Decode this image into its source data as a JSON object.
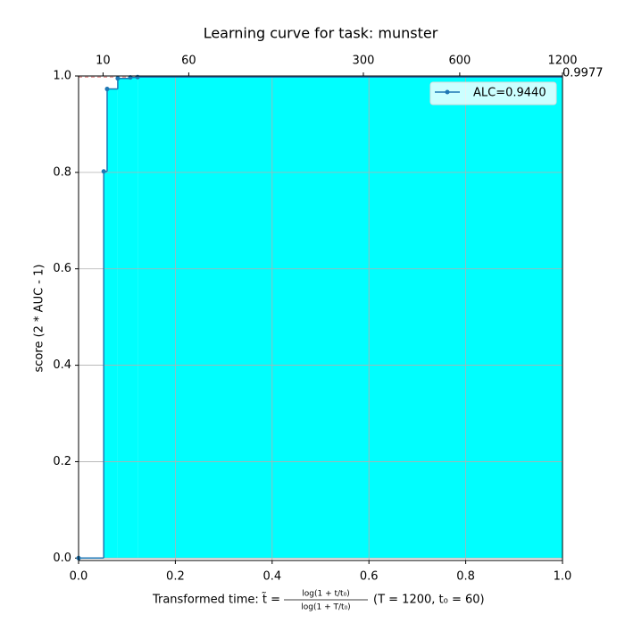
{
  "chart_data": {
    "type": "step",
    "title": "Learning curve for task: munster",
    "ylabel": "score (2 * AUC - 1)",
    "xlabel_prefix": "Transformed time: t̃ =",
    "xlabel_numerator": "log(1 + t/t₀)",
    "xlabel_denominator": "log(1 + T/t₀)",
    "xlabel_suffix": "(T = 1200,  t₀ = 60)",
    "x": [
      0,
      0.052,
      0.059,
      0.081,
      0.107,
      0.122
    ],
    "series": [
      {
        "name": "ALC=0.9440",
        "color": "#1f77b4",
        "fill": "#00ffff",
        "values": [
          0,
          0.802,
          0.973,
          0.995,
          0.997,
          0.9977
        ]
      }
    ],
    "reference_line": 0.9977,
    "xlim": [
      0,
      1
    ],
    "ylim": [
      -0.005,
      1
    ],
    "xticks": [
      {
        "value": 0,
        "label": "0.0"
      },
      0.2,
      0.4,
      0.6,
      0.8,
      {
        "value": 1,
        "label": "1.0"
      }
    ],
    "yticks": [
      {
        "value": 0,
        "label": "0.0"
      },
      0.2,
      0.4,
      0.6,
      0.8,
      {
        "value": 1,
        "label": "1.0"
      }
    ],
    "x2ticks": [
      {
        "value": 0.0506,
        "label": "10"
      },
      {
        "value": 0.2277,
        "label": "60"
      },
      {
        "value": 0.5885,
        "label": "300"
      },
      {
        "value": 0.7876,
        "label": "600"
      },
      {
        "value": 1,
        "label": "1200"
      }
    ],
    "grid": true,
    "legend": "upper right"
  }
}
